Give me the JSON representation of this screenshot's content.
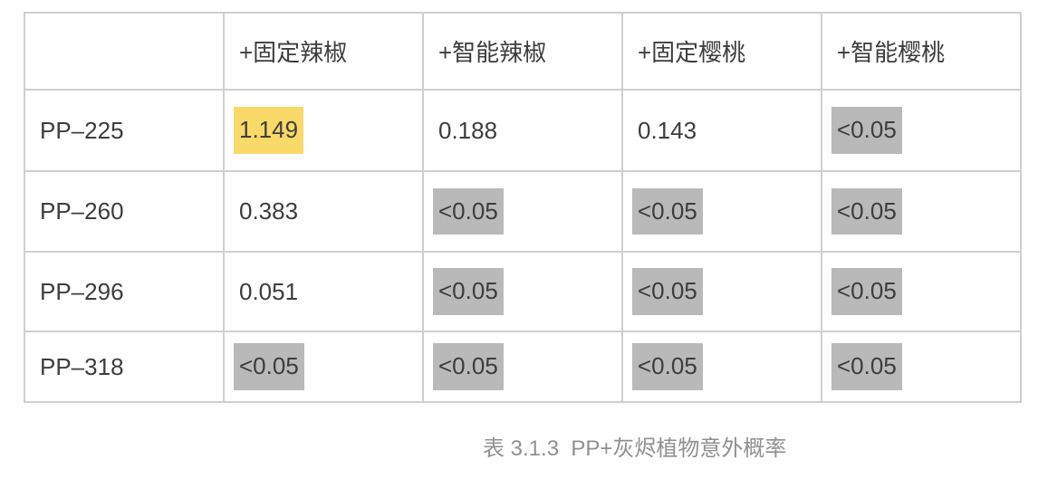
{
  "table": {
    "columns": [
      "",
      "+固定辣椒",
      "+智能辣椒",
      "+固定樱桃",
      "+智能樱桃"
    ],
    "rows": [
      {
        "label": "PP–225",
        "cells": [
          {
            "text": "1.149",
            "highlight": "yellow"
          },
          {
            "text": "0.188",
            "highlight": "none"
          },
          {
            "text": "0.143",
            "highlight": "none"
          },
          {
            "text": "<0.05",
            "highlight": "gray"
          }
        ]
      },
      {
        "label": "PP–260",
        "cells": [
          {
            "text": "0.383",
            "highlight": "none"
          },
          {
            "text": "<0.05",
            "highlight": "gray"
          },
          {
            "text": "<0.05",
            "highlight": "gray"
          },
          {
            "text": "<0.05",
            "highlight": "gray"
          }
        ]
      },
      {
        "label": "PP–296",
        "cells": [
          {
            "text": "0.051",
            "highlight": "none"
          },
          {
            "text": "<0.05",
            "highlight": "gray"
          },
          {
            "text": "<0.05",
            "highlight": "gray"
          },
          {
            "text": "<0.05",
            "highlight": "gray"
          }
        ]
      },
      {
        "label": "PP–318",
        "cells": [
          {
            "text": "<0.05",
            "highlight": "gray"
          },
          {
            "text": "<0.05",
            "highlight": "gray"
          },
          {
            "text": "<0.05",
            "highlight": "gray"
          },
          {
            "text": "<0.05",
            "highlight": "gray"
          }
        ]
      }
    ]
  },
  "caption": "表 3.1.3  PP+灰烬植物意外概率",
  "colors": {
    "highlight_yellow": "#F9D968",
    "highlight_gray": "#B9B9B9",
    "border": "#CFCFD3",
    "cell_text": "#3D3D3D",
    "caption_text": "#909090"
  }
}
